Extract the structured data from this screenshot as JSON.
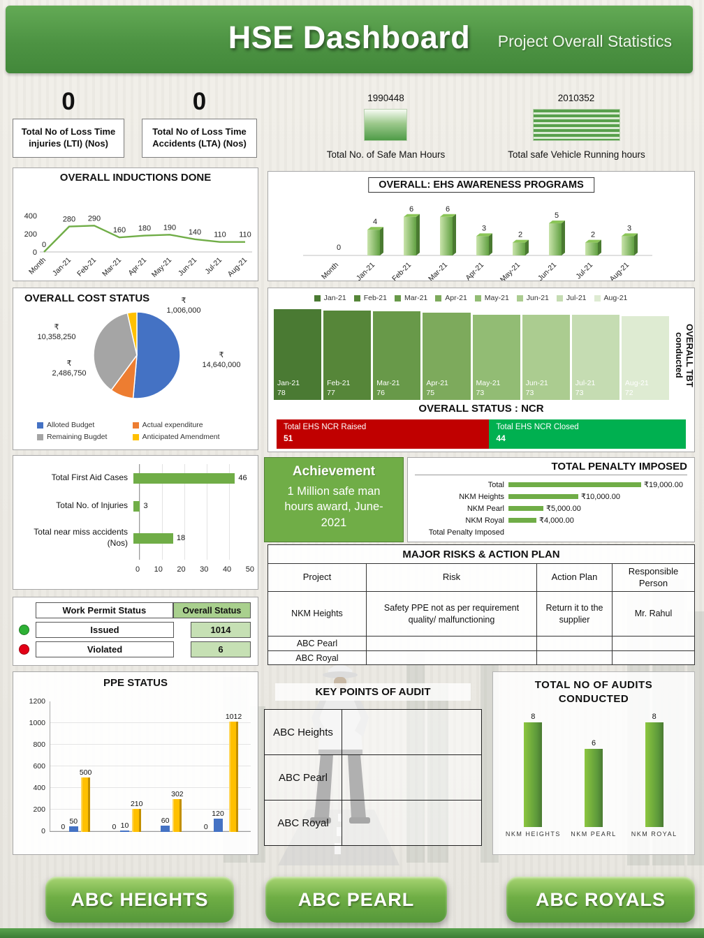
{
  "header": {
    "title": "HSE Dashboard",
    "subtitle": "Project Overall Statistics"
  },
  "colors": {
    "primary_green": "#70ad47",
    "header_green": "#4d9343",
    "ncr_red": "#c00000",
    "ncr_closed_green": "#00b050",
    "issued_dot": "#2eb135",
    "violated_dot": "#e30016"
  },
  "kpis": {
    "lti_value": "0",
    "lti_label": "Total No of Loss Time injuries (LTI) (Nos)",
    "lta_value": "0",
    "lta_label": "Total No of Loss Time Accidents (LTA) (Nos)",
    "safe_man_hours_value": "1990448",
    "safe_man_hours_label": "Total No. of Safe Man Hours",
    "vehicle_hours_value": "2010352",
    "vehicle_hours_label": "Total  safe Vehicle Running hours"
  },
  "achievement": {
    "title": "Achievement",
    "text": "1 Million safe man hours award, June-2021"
  },
  "work_permit": {
    "header": "Work Permit Status",
    "overall_header": "Overall Status",
    "rows": [
      {
        "label": "Issued",
        "value": "1014",
        "color": "#2eb135"
      },
      {
        "label": "Violated",
        "value": "6",
        "color": "#e30016"
      }
    ]
  },
  "major_risks": {
    "title": "MAJOR RISKS & ACTION PLAN",
    "columns": [
      "Project",
      "Risk",
      "Action Plan",
      "Responsible Person"
    ],
    "rows": [
      [
        "NKM Heights",
        "Safety PPE not as per requirement quality/ malfunctioning",
        "Return it to the supplier",
        "Mr. Rahul"
      ],
      [
        "ABC Pearl",
        "",
        "",
        ""
      ],
      [
        "ABC Royal",
        "",
        "",
        ""
      ]
    ]
  },
  "key_points": {
    "title": "KEY POINTS OF AUDIT",
    "rows": [
      "ABC Heights",
      "ABC Pearl",
      "ABC Royal"
    ]
  },
  "buttons": [
    "ABC HEIGHTS",
    "ABC PEARL",
    "ABC ROYALS"
  ],
  "chart_data": [
    {
      "name": "inductions",
      "type": "line",
      "title": "OVERALL INDUCTIONS DONE",
      "categories": [
        "Month",
        "Jan-21",
        "Feb-21",
        "Mar-21",
        "Apr-21",
        "May-21",
        "Jun-21",
        "Jul-21",
        "Aug-21"
      ],
      "values": [
        0,
        280,
        290,
        160,
        180,
        190,
        140,
        110,
        110
      ],
      "ylim": [
        0,
        400
      ],
      "yticks": [
        0,
        200,
        400
      ],
      "line_color": "#70ad47"
    },
    {
      "name": "ehs_awareness",
      "type": "bar",
      "title": "OVERALL: EHS AWARENESS PROGRAMS",
      "categories": [
        "Month",
        "Jan-21",
        "Feb-21",
        "Mar-21",
        "Apr-21",
        "May-21",
        "Jun-21",
        "Jul-21",
        "Aug-21"
      ],
      "values": [
        0,
        4,
        6,
        6,
        3,
        2,
        5,
        2,
        3
      ],
      "bar_color": "#70ad47"
    },
    {
      "name": "cost_status",
      "type": "pie",
      "title": "OVERALL COST STATUS",
      "slices": [
        {
          "label": "Alloted Budget",
          "value": 14640000,
          "display": "₹\n14,640,000",
          "color": "#4472c4"
        },
        {
          "label": "Actual expenditure",
          "value": 2486750,
          "display": "₹\n2,486,750",
          "color": "#ed7d31"
        },
        {
          "label": "Remaining Bugdet",
          "value": 10358250,
          "display": "₹\n10,358,250",
          "color": "#a5a5a5"
        },
        {
          "label": "Anticipated Amendment",
          "value": 1006000,
          "display": "₹\n1,006,000",
          "color": "#ffc000"
        }
      ]
    },
    {
      "name": "tbt",
      "type": "bar",
      "title": "OVERALL TBT conducted",
      "categories": [
        "Jan-21",
        "Feb-21",
        "Mar-21",
        "Apr-21",
        "May-21",
        "Jun-21",
        "Jul-21",
        "Aug-21"
      ],
      "values": [
        78,
        77,
        76,
        75,
        73,
        73,
        73,
        72
      ],
      "colors": [
        "#4a7a33",
        "#568639",
        "#689949",
        "#7daa5c",
        "#92bc74",
        "#abcc90",
        "#c5dcb2",
        "#deebd2"
      ]
    },
    {
      "name": "ncr",
      "type": "bar-horizontal",
      "title": "OVERALL STATUS : NCR",
      "series": [
        {
          "label": "Total EHS NCR Raised",
          "value": 51,
          "color": "#c00000"
        },
        {
          "label": "Total EHS NCR Closed",
          "value": 44,
          "color": "#00b050"
        }
      ]
    },
    {
      "name": "incident_summary",
      "type": "bar-horizontal",
      "categories": [
        "Total First Aid Cases",
        "Total No. of Injuries",
        "Total near miss accidents (Nos)"
      ],
      "values": [
        46,
        3,
        18
      ],
      "xmax": 50,
      "xticks": [
        0,
        10,
        20,
        30,
        40,
        50
      ],
      "bar_color": "#70ad47"
    },
    {
      "name": "penalty",
      "type": "bar-horizontal",
      "title": "TOTAL PENALTY IMPOSED",
      "xmax": 19000,
      "bar_color": "#70ad47",
      "rows": [
        {
          "label": "Total",
          "value": 19000,
          "display": "₹19,000.00"
        },
        {
          "label": "NKM Heights",
          "value": 10000,
          "display": "₹10,000.00"
        },
        {
          "label": "NKM Pearl",
          "value": 5000,
          "display": "₹5,000.00"
        },
        {
          "label": "NKM Royal",
          "value": 4000,
          "display": "₹4,000.00"
        },
        {
          "label": "Total Penalty Imposed",
          "value": 0,
          "display": ""
        }
      ]
    },
    {
      "name": "ppe_status",
      "type": "bar",
      "title": "PPE STATUS",
      "ylim": [
        0,
        1200
      ],
      "yticks": [
        0,
        200,
        400,
        600,
        800,
        1000,
        1200
      ],
      "series_colors": [
        "#a6a6a6",
        "#4472c4",
        "#ffc000"
      ],
      "groups": [
        [
          0,
          50,
          500
        ],
        [
          0,
          10,
          210
        ],
        [
          null,
          60,
          302
        ],
        [
          0,
          120,
          1012
        ]
      ]
    },
    {
      "name": "audits",
      "type": "bar",
      "title": "TOTAL NO OF AUDITS CONDUCTED",
      "categories": [
        "NKM HEIGHTS",
        "NKM PEARL",
        "NKM ROYAL"
      ],
      "values": [
        8,
        6,
        8
      ],
      "ymax": 8,
      "bar_color": "#70ad47"
    }
  ]
}
